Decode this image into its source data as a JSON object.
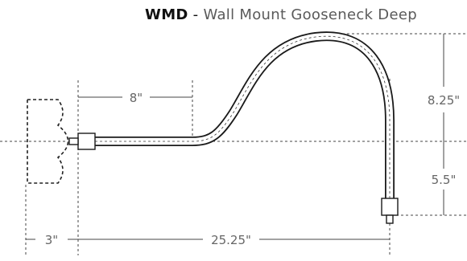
{
  "title": {
    "code": "WMD",
    "separator": " - ",
    "name": "Wall Mount Gooseneck Deep"
  },
  "dimensions": {
    "straight_length": "8\"",
    "arch_height": "8.25\"",
    "drop_height": "5.5\"",
    "wall_offset": "3\"",
    "total_projection": "25.25\""
  }
}
